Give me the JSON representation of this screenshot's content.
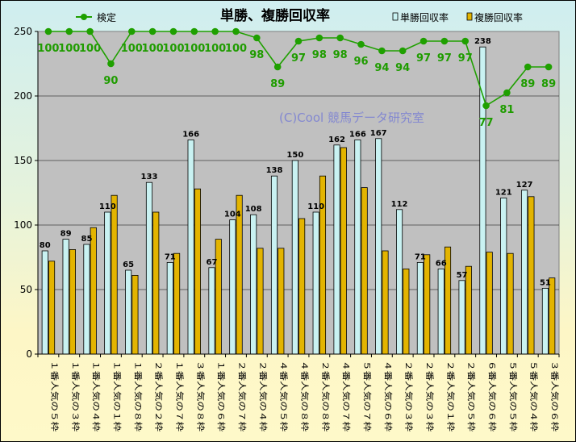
{
  "chart_data": {
    "type": "bar",
    "title": "単勝、複勝回収率",
    "watermark": "(C)Cool 競馬データ研究室",
    "categories": [
      "１番人気の５枠",
      "１番人気の３枠",
      "１番人気の４枠",
      "１番人気の１枠",
      "１番人気の８枠",
      "２番人気の２枠",
      "１番人気の７枠",
      "３番人気の８枠",
      "１番人気の６枠",
      "２番人気の７枠",
      "２番人気の４枠",
      "４番人気の５枠",
      "４番人気の８枠",
      "２番人気の８枠",
      "４番人気の７枠",
      "５番人気の７枠",
      "４番人気の６枠",
      "２番人気の３枠",
      "２番人気の３枠",
      "２番人気の１枠",
      "２番人気の５枠",
      "６番人気の６枠",
      "５番人気の５枠",
      "５番人気の４枠",
      "３番人気の６枠"
    ],
    "series": [
      {
        "name": "単勝回収率",
        "kind": "bar",
        "color": "#c9f2f2",
        "values": [
          80,
          89,
          85,
          110,
          65,
          133,
          71,
          166,
          67,
          104,
          108,
          138,
          150,
          110,
          162,
          166,
          167,
          112,
          71,
          66,
          57,
          238,
          121,
          127,
          51
        ]
      },
      {
        "name": "複勝回収率",
        "kind": "bar",
        "color": "#e3b400",
        "values": [
          72,
          81,
          98,
          123,
          61,
          110,
          78,
          128,
          89,
          123,
          82,
          82,
          105,
          138,
          160,
          129,
          80,
          66,
          77,
          83,
          68,
          79,
          78,
          122,
          59
        ]
      },
      {
        "name": "検定",
        "kind": "line",
        "color": "#1fa000",
        "display_scale": 2.5,
        "values": [
          100,
          100,
          100,
          90,
          100,
          100,
          100,
          100,
          100,
          100,
          98,
          89,
          97,
          98,
          98,
          96,
          94,
          94,
          97,
          97,
          97,
          77,
          81,
          89,
          89
        ]
      }
    ],
    "ylim": [
      0,
      250
    ],
    "yticks": [
      0,
      50,
      100,
      150,
      200,
      250
    ],
    "grid": true,
    "legend": "top"
  }
}
